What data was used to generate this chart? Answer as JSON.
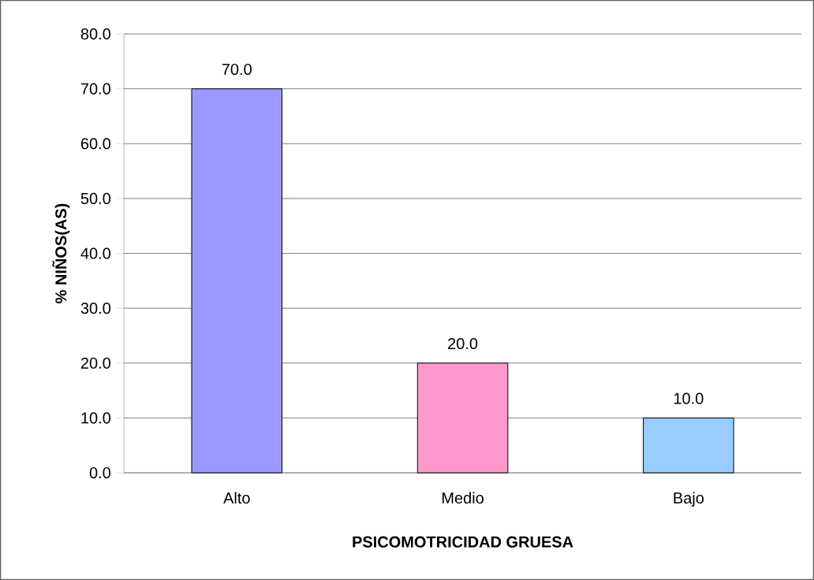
{
  "chart_data": {
    "type": "bar",
    "xlabel": "PSICOMOTRICIDAD GRUESA",
    "ylabel": "% NIÑOS(AS)",
    "categories": [
      "Alto",
      "Medio",
      "Bajo"
    ],
    "values": [
      70,
      20,
      10
    ],
    "colors": [
      "#9999ff",
      "#ff99cc",
      "#99ccff"
    ],
    "value_labels": [
      "70.0",
      "20.0",
      "10.0"
    ],
    "ylim": [
      0,
      80
    ],
    "yticks": [
      {
        "value": 0,
        "label": "0.0"
      },
      {
        "value": 10,
        "label": "10.0"
      },
      {
        "value": 20,
        "label": "20.0"
      },
      {
        "value": 30,
        "label": "30.0"
      },
      {
        "value": 40,
        "label": "40.0"
      },
      {
        "value": 50,
        "label": "50.0"
      },
      {
        "value": 60,
        "label": "60.0"
      },
      {
        "value": 70,
        "label": "70.0"
      },
      {
        "value": 80,
        "label": "80.0"
      }
    ],
    "grid": "y"
  }
}
